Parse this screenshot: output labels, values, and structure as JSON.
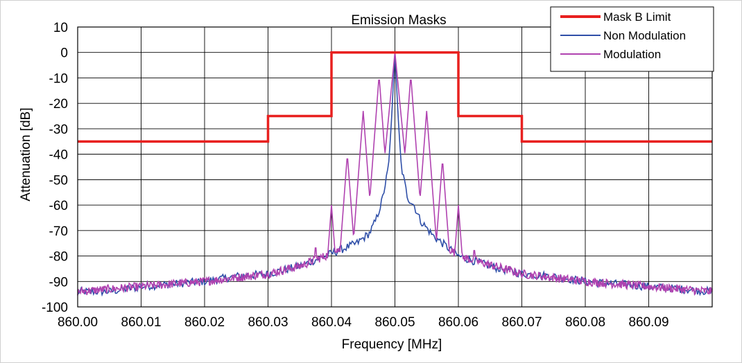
{
  "chart_data": {
    "type": "line",
    "title": "Emission Masks",
    "xlabel": "Frequency [MHz]",
    "ylabel": "Attenuation [dB]",
    "xlim": [
      860.0,
      860.1
    ],
    "ylim": [
      -100,
      10
    ],
    "x_ticks": [
      860.0,
      860.01,
      860.02,
      860.03,
      860.04,
      860.05,
      860.06,
      860.07,
      860.08,
      860.09
    ],
    "x_tick_labels": [
      "860.00",
      "860.01",
      "860.02",
      "860.03",
      "860.04",
      "860.05",
      "860.06",
      "860.07",
      "860.08",
      "860.09"
    ],
    "y_ticks": [
      10,
      0,
      -10,
      -20,
      -30,
      -40,
      -50,
      -60,
      -70,
      -80,
      -90,
      -100
    ],
    "y_tick_labels": [
      "10",
      "0",
      "-10",
      "-20",
      "-30",
      "-40",
      "-50",
      "-60",
      "-70",
      "-80",
      "-90",
      "-100"
    ],
    "grid": true,
    "legend": "top-right",
    "series": [
      {
        "name": "Mask B Limit",
        "color": "#e8201f",
        "step": true,
        "x": [
          860.0,
          860.03,
          860.03,
          860.04,
          860.04,
          860.06,
          860.06,
          860.07,
          860.07,
          860.1
        ],
        "y": [
          -35,
          -35,
          -25,
          -25,
          0,
          0,
          -25,
          -25,
          -35,
          -35
        ]
      },
      {
        "name": "Non Modulation",
        "color": "#2f4fa8",
        "x": [
          860.0,
          860.005,
          860.01,
          860.015,
          860.02,
          860.025,
          860.03,
          860.035,
          860.04,
          860.042,
          860.044,
          860.046,
          860.047,
          860.048,
          860.049,
          860.0495,
          860.05,
          860.0505,
          860.051,
          860.052,
          860.053,
          860.054,
          860.056,
          860.058,
          860.06,
          860.065,
          860.07,
          860.075,
          860.08,
          860.085,
          860.09,
          860.095,
          860.1
        ],
        "y": [
          -94,
          -94,
          -92,
          -91,
          -90,
          -88,
          -87,
          -84,
          -79,
          -77,
          -75,
          -71,
          -66,
          -58,
          -45,
          -25,
          0,
          -25,
          -45,
          -57,
          -60,
          -66,
          -72,
          -76,
          -80,
          -84,
          -87,
          -88,
          -90,
          -91,
          -92,
          -93,
          -94
        ]
      },
      {
        "name": "Modulation",
        "color": "#b042b0",
        "x": [
          860.0,
          860.005,
          860.01,
          860.015,
          860.02,
          860.025,
          860.03,
          860.035,
          860.0375,
          860.0385,
          860.04,
          860.0425,
          860.045,
          860.0475,
          860.05,
          860.0525,
          860.055,
          860.0575,
          860.06,
          860.0615,
          860.0625,
          860.064,
          860.065,
          860.07,
          860.075,
          860.08,
          860.085,
          860.09,
          860.095,
          860.1
        ],
        "y": [
          -94,
          -94,
          -92,
          -91,
          -90,
          -88,
          -87,
          -84,
          -75,
          -81,
          -60,
          -40,
          -23,
          -9,
          0,
          -9,
          -23,
          -42,
          -60,
          -80,
          -76,
          -82,
          -84,
          -87,
          -88,
          -90,
          -91,
          -92,
          -93,
          -94
        ],
        "peaks": [
          {
            "x": 860.0375,
            "y": -75
          },
          {
            "x": 860.04,
            "y": -60
          },
          {
            "x": 860.0425,
            "y": -40
          },
          {
            "x": 860.045,
            "y": -23
          },
          {
            "x": 860.0475,
            "y": -9
          },
          {
            "x": 860.05,
            "y": 0
          },
          {
            "x": 860.0525,
            "y": -9
          },
          {
            "x": 860.055,
            "y": -23
          },
          {
            "x": 860.0575,
            "y": -42
          },
          {
            "x": 860.06,
            "y": -60
          },
          {
            "x": 860.0625,
            "y": -76
          }
        ],
        "floor": [
          {
            "x": 860.0,
            "y": -94
          },
          {
            "x": 860.01,
            "y": -92
          },
          {
            "x": 860.02,
            "y": -90
          },
          {
            "x": 860.03,
            "y": -87
          },
          {
            "x": 860.035,
            "y": -84
          },
          {
            "x": 860.04,
            "y": -79
          },
          {
            "x": 860.045,
            "y": -73
          },
          {
            "x": 860.048,
            "y": -60
          },
          {
            "x": 860.05,
            "y": -50
          },
          {
            "x": 860.052,
            "y": -60
          },
          {
            "x": 860.055,
            "y": -70
          },
          {
            "x": 860.06,
            "y": -80
          },
          {
            "x": 860.07,
            "y": -87
          },
          {
            "x": 860.08,
            "y": -90
          },
          {
            "x": 860.09,
            "y": -92
          },
          {
            "x": 860.1,
            "y": -94
          }
        ]
      }
    ]
  }
}
